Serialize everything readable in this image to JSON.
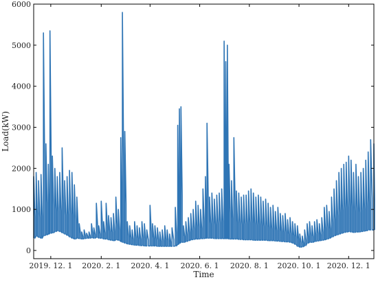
{
  "chart_data": {
    "type": "line",
    "title": "",
    "xlabel": "Time",
    "ylabel": "Load(kW)",
    "ylim": [
      -200,
      6000
    ],
    "xlim": [
      "2019-11-10",
      "2021-01-01"
    ],
    "grid": false,
    "legend": "none",
    "colors": {
      "series": "#2f75b5",
      "axis": "#000000"
    },
    "x_ticks": [
      {
        "date": "2019-12-01",
        "label": "2019. 12. 1"
      },
      {
        "date": "2020-02-01",
        "label": "2020. 2. 1"
      },
      {
        "date": "2020-04-01",
        "label": "2020. 4. 1"
      },
      {
        "date": "2020-06-01",
        "label": "2020. 6. 1"
      },
      {
        "date": "2020-08-01",
        "label": "2020. 8. 1"
      },
      {
        "date": "2020-10-01",
        "label": "2020. 10. 1"
      },
      {
        "date": "2020-12-01",
        "label": "2020. 12. 1"
      }
    ],
    "y_ticks": [
      0,
      1000,
      2000,
      3000,
      4000,
      5000,
      6000
    ],
    "series": [
      {
        "name": "",
        "points": [
          [
            "2019-11-10",
            1800,
            300
          ],
          [
            "2019-11-13",
            1900,
            350
          ],
          [
            "2019-11-16",
            1700,
            320
          ],
          [
            "2019-11-19",
            1850,
            300
          ],
          [
            "2019-11-22",
            5300,
            360
          ],
          [
            "2019-11-25",
            2600,
            380
          ],
          [
            "2019-11-28",
            2100,
            400
          ],
          [
            "2019-11-30",
            5350,
            420
          ],
          [
            "2019-12-03",
            2300,
            430
          ],
          [
            "2019-12-06",
            2000,
            460
          ],
          [
            "2019-12-09",
            1800,
            480
          ],
          [
            "2019-12-12",
            1900,
            460
          ],
          [
            "2019-12-15",
            2500,
            430
          ],
          [
            "2019-12-18",
            1700,
            400
          ],
          [
            "2019-12-21",
            1800,
            370
          ],
          [
            "2019-12-24",
            1950,
            330
          ],
          [
            "2019-12-27",
            1900,
            300
          ],
          [
            "2019-12-30",
            1600,
            280
          ],
          [
            "2020-01-02",
            1300,
            300
          ],
          [
            "2020-01-05",
            650,
            290
          ],
          [
            "2020-01-08",
            450,
            280
          ],
          [
            "2020-01-11",
            500,
            290
          ],
          [
            "2020-01-14",
            420,
            300
          ],
          [
            "2020-01-17",
            450,
            300
          ],
          [
            "2020-01-20",
            650,
            310
          ],
          [
            "2020-01-23",
            550,
            300
          ],
          [
            "2020-01-26",
            1150,
            320
          ],
          [
            "2020-01-29",
            600,
            300
          ],
          [
            "2020-02-01",
            1200,
            300
          ],
          [
            "2020-02-04",
            700,
            280
          ],
          [
            "2020-02-07",
            1150,
            280
          ],
          [
            "2020-02-10",
            850,
            260
          ],
          [
            "2020-02-13",
            800,
            250
          ],
          [
            "2020-02-16",
            900,
            240
          ],
          [
            "2020-02-19",
            1300,
            260
          ],
          [
            "2020-02-22",
            1000,
            250
          ],
          [
            "2020-02-25",
            2750,
            220
          ],
          [
            "2020-02-27",
            5800,
            200
          ],
          [
            "2020-03-01",
            2900,
            180
          ],
          [
            "2020-03-04",
            700,
            160
          ],
          [
            "2020-03-07",
            600,
            150
          ],
          [
            "2020-03-10",
            500,
            140
          ],
          [
            "2020-03-13",
            700,
            130
          ],
          [
            "2020-03-16",
            600,
            130
          ],
          [
            "2020-03-19",
            550,
            120
          ],
          [
            "2020-03-22",
            700,
            120
          ],
          [
            "2020-03-25",
            650,
            110
          ],
          [
            "2020-03-28",
            500,
            110
          ],
          [
            "2020-04-01",
            1100,
            110
          ],
          [
            "2020-04-04",
            650,
            110
          ],
          [
            "2020-04-07",
            600,
            110
          ],
          [
            "2020-04-10",
            550,
            100
          ],
          [
            "2020-04-13",
            450,
            100
          ],
          [
            "2020-04-16",
            500,
            100
          ],
          [
            "2020-04-19",
            600,
            100
          ],
          [
            "2020-04-22",
            500,
            100
          ],
          [
            "2020-04-25",
            400,
            100
          ],
          [
            "2020-04-28",
            550,
            100
          ],
          [
            "2020-05-02",
            1050,
            110
          ],
          [
            "2020-05-05",
            3050,
            150
          ],
          [
            "2020-05-07",
            3450,
            180
          ],
          [
            "2020-05-09",
            3500,
            200
          ],
          [
            "2020-05-12",
            600,
            200
          ],
          [
            "2020-05-15",
            700,
            220
          ],
          [
            "2020-05-18",
            800,
            240
          ],
          [
            "2020-05-21",
            900,
            260
          ],
          [
            "2020-05-24",
            1000,
            270
          ],
          [
            "2020-05-27",
            1200,
            280
          ],
          [
            "2020-05-30",
            1100,
            280
          ],
          [
            "2020-06-02",
            1000,
            290
          ],
          [
            "2020-06-05",
            1500,
            290
          ],
          [
            "2020-06-08",
            1800,
            300
          ],
          [
            "2020-06-10",
            3100,
            300
          ],
          [
            "2020-06-13",
            1300,
            300
          ],
          [
            "2020-06-16",
            1400,
            300
          ],
          [
            "2020-06-19",
            1250,
            290
          ],
          [
            "2020-06-22",
            1350,
            290
          ],
          [
            "2020-06-25",
            1400,
            290
          ],
          [
            "2020-06-28",
            1500,
            290
          ],
          [
            "2020-07-01",
            5100,
            290
          ],
          [
            "2020-07-03",
            4600,
            290
          ],
          [
            "2020-07-05",
            5000,
            290
          ],
          [
            "2020-07-07",
            2100,
            280
          ],
          [
            "2020-07-10",
            1700,
            280
          ],
          [
            "2020-07-13",
            2750,
            280
          ],
          [
            "2020-07-16",
            1450,
            280
          ],
          [
            "2020-07-19",
            1400,
            270
          ],
          [
            "2020-07-22",
            1300,
            270
          ],
          [
            "2020-07-25",
            1350,
            260
          ],
          [
            "2020-07-28",
            1350,
            260
          ],
          [
            "2020-07-31",
            1450,
            260
          ],
          [
            "2020-08-03",
            1500,
            260
          ],
          [
            "2020-08-06",
            1400,
            250
          ],
          [
            "2020-08-09",
            1300,
            250
          ],
          [
            "2020-08-12",
            1350,
            250
          ],
          [
            "2020-08-15",
            1300,
            250
          ],
          [
            "2020-08-18",
            1200,
            250
          ],
          [
            "2020-08-21",
            1250,
            250
          ],
          [
            "2020-08-24",
            1150,
            240
          ],
          [
            "2020-08-27",
            1050,
            240
          ],
          [
            "2020-08-30",
            1100,
            240
          ],
          [
            "2020-09-02",
            950,
            230
          ],
          [
            "2020-09-05",
            1050,
            230
          ],
          [
            "2020-09-08",
            900,
            220
          ],
          [
            "2020-09-11",
            850,
            220
          ],
          [
            "2020-09-14",
            900,
            210
          ],
          [
            "2020-09-17",
            750,
            210
          ],
          [
            "2020-09-20",
            800,
            200
          ],
          [
            "2020-09-23",
            700,
            180
          ],
          [
            "2020-09-26",
            650,
            150
          ],
          [
            "2020-09-29",
            600,
            100
          ],
          [
            "2020-10-02",
            400,
            80
          ],
          [
            "2020-10-05",
            350,
            90
          ],
          [
            "2020-10-08",
            500,
            120
          ],
          [
            "2020-10-11",
            650,
            180
          ],
          [
            "2020-10-14",
            700,
            200
          ],
          [
            "2020-10-17",
            600,
            200
          ],
          [
            "2020-10-20",
            700,
            220
          ],
          [
            "2020-10-23",
            750,
            230
          ],
          [
            "2020-10-26",
            650,
            240
          ],
          [
            "2020-10-29",
            800,
            250
          ],
          [
            "2020-11-01",
            1050,
            260
          ],
          [
            "2020-11-04",
            1100,
            280
          ],
          [
            "2020-11-07",
            950,
            300
          ],
          [
            "2020-11-10",
            1300,
            330
          ],
          [
            "2020-11-13",
            1500,
            360
          ],
          [
            "2020-11-16",
            1700,
            380
          ],
          [
            "2020-11-19",
            1900,
            400
          ],
          [
            "2020-11-22",
            2000,
            420
          ],
          [
            "2020-11-25",
            2100,
            440
          ],
          [
            "2020-11-28",
            2150,
            450
          ],
          [
            "2020-12-01",
            2300,
            460
          ],
          [
            "2020-12-04",
            2200,
            450
          ],
          [
            "2020-12-07",
            1900,
            440
          ],
          [
            "2020-12-10",
            2100,
            450
          ],
          [
            "2020-12-13",
            1800,
            450
          ],
          [
            "2020-12-16",
            1900,
            460
          ],
          [
            "2020-12-19",
            2000,
            470
          ],
          [
            "2020-12-22",
            2200,
            480
          ],
          [
            "2020-12-25",
            2400,
            500
          ],
          [
            "2020-12-28",
            2700,
            500
          ],
          [
            "2021-01-01",
            2600,
            500
          ]
        ]
      }
    ]
  }
}
